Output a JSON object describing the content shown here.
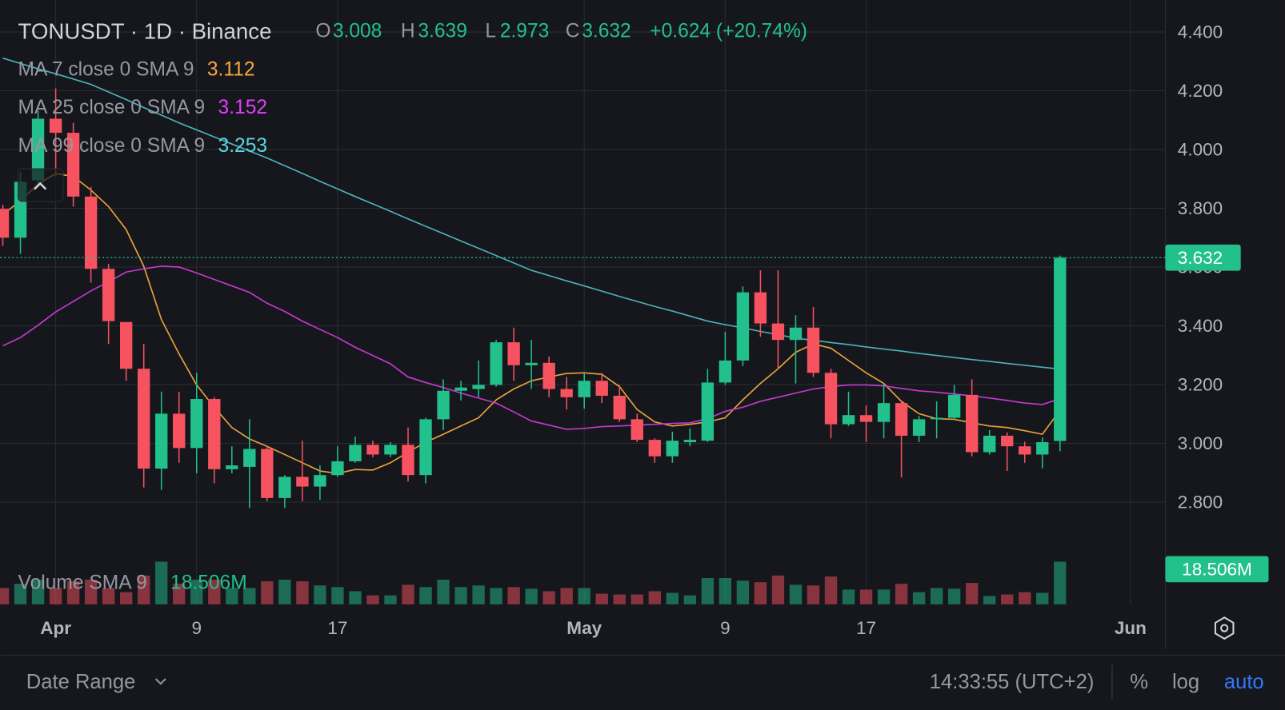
{
  "chart_data": {
    "type": "candlestick",
    "title": "TONUSDT · 1D · Binance",
    "header": {
      "open_label": "O",
      "high_label": "H",
      "low_label": "L",
      "close_label": "C",
      "change": "+0.624 (+20.74%)"
    },
    "up_color": "#22c08b",
    "down_color": "#f7525f",
    "open": [
      3.798,
      3.7,
      3.895,
      4.105,
      4.057,
      3.84,
      3.594,
      3.413,
      3.254,
      2.914,
      3.101,
      2.984,
      3.151,
      2.912,
      2.92,
      2.981,
      2.814,
      2.886,
      2.853,
      2.892,
      2.939,
      2.995,
      2.962,
      2.995,
      2.892,
      3.082,
      3.179,
      3.185,
      3.199,
      3.344,
      3.266,
      3.274,
      3.185,
      3.157,
      3.213,
      3.162,
      3.082,
      3.012,
      2.956,
      3.004,
      3.009,
      3.207,
      3.282,
      3.514,
      3.408,
      3.352,
      3.394,
      3.24,
      3.065,
      3.096,
      3.073,
      3.137,
      3.026,
      3.082,
      3.087,
      3.165,
      2.97,
      3.026,
      2.99,
      2.962,
      3.008
    ],
    "high": [
      3.812,
      3.923,
      4.132,
      4.208,
      4.091,
      3.873,
      3.611,
      3.413,
      3.338,
      3.176,
      3.176,
      3.24,
      3.157,
      2.99,
      3.082,
      2.99,
      2.892,
      3.009,
      2.925,
      2.99,
      3.023,
      3.009,
      3.004,
      3.054,
      3.087,
      3.218,
      3.213,
      3.282,
      3.352,
      3.394,
      3.352,
      3.296,
      3.226,
      3.24,
      3.24,
      3.199,
      3.101,
      3.017,
      3.04,
      3.051,
      3.254,
      3.38,
      3.534,
      3.589,
      3.589,
      3.436,
      3.464,
      3.254,
      3.176,
      3.129,
      3.204,
      3.14,
      3.093,
      3.143,
      3.199,
      3.218,
      3.045,
      3.037,
      3.006,
      3.02,
      3.639
    ],
    "low": [
      3.672,
      3.645,
      3.882,
      3.909,
      3.806,
      3.547,
      3.338,
      3.213,
      2.85,
      2.842,
      2.934,
      2.898,
      2.864,
      2.898,
      2.78,
      2.803,
      2.78,
      2.803,
      2.808,
      2.886,
      2.934,
      2.953,
      2.953,
      2.87,
      2.864,
      3.045,
      3.146,
      3.157,
      3.193,
      3.213,
      3.185,
      3.157,
      3.115,
      3.118,
      3.137,
      3.073,
      3.004,
      2.934,
      2.934,
      2.99,
      3.004,
      3.199,
      3.263,
      3.363,
      3.252,
      3.204,
      3.226,
      3.017,
      3.059,
      3.004,
      3.017,
      2.884,
      3.004,
      3.017,
      3.079,
      2.956,
      2.962,
      2.906,
      2.934,
      2.915,
      2.973
    ],
    "close": [
      3.7,
      3.89,
      4.105,
      4.057,
      3.84,
      3.594,
      3.416,
      3.254,
      2.914,
      3.101,
      2.984,
      3.151,
      2.912,
      2.925,
      2.981,
      2.814,
      2.886,
      2.853,
      2.892,
      2.939,
      2.995,
      2.962,
      2.995,
      2.892,
      3.082,
      3.179,
      3.19,
      3.199,
      3.344,
      3.266,
      3.274,
      3.185,
      3.157,
      3.213,
      3.162,
      3.082,
      3.012,
      2.956,
      3.009,
      3.012,
      3.207,
      3.282,
      3.514,
      3.408,
      3.352,
      3.394,
      3.24,
      3.065,
      3.096,
      3.073,
      3.137,
      3.026,
      3.082,
      3.087,
      3.165,
      2.97,
      3.026,
      2.99,
      2.962,
      3.004,
      3.632
    ],
    "series": [
      {
        "name": "MA 7 close 0 SMA 9",
        "color": "#e8a33d",
        "label_color": "#f7a644",
        "values": [
          3.778,
          3.826,
          3.882,
          3.918,
          3.909,
          3.862,
          3.806,
          3.728,
          3.603,
          3.422,
          3.305,
          3.199,
          3.123,
          3.054,
          3.015,
          2.99,
          2.962,
          2.934,
          2.906,
          2.898,
          2.911,
          2.909,
          2.934,
          2.97,
          3.004,
          3.031,
          3.059,
          3.087,
          3.148,
          3.185,
          3.213,
          3.226,
          3.238,
          3.24,
          3.235,
          3.193,
          3.115,
          3.073,
          3.059,
          3.065,
          3.073,
          3.087,
          3.148,
          3.204,
          3.254,
          3.31,
          3.338,
          3.324,
          3.282,
          3.24,
          3.204,
          3.143,
          3.101,
          3.084,
          3.082,
          3.07,
          3.059,
          3.054,
          3.043,
          3.031,
          3.112
        ]
      },
      {
        "name": "MA 25 close 0 SMA 9",
        "color": "#c53ad0",
        "label_color": "#e040fb",
        "values": [
          3.332,
          3.36,
          3.402,
          3.447,
          3.483,
          3.519,
          3.55,
          3.583,
          3.594,
          3.603,
          3.6,
          3.58,
          3.558,
          3.536,
          3.514,
          3.477,
          3.449,
          3.416,
          3.388,
          3.36,
          3.327,
          3.299,
          3.271,
          3.226,
          3.207,
          3.19,
          3.171,
          3.154,
          3.137,
          3.107,
          3.076,
          3.062,
          3.048,
          3.051,
          3.057,
          3.059,
          3.062,
          3.065,
          3.068,
          3.07,
          3.084,
          3.109,
          3.123,
          3.143,
          3.157,
          3.171,
          3.185,
          3.193,
          3.199,
          3.199,
          3.196,
          3.187,
          3.179,
          3.174,
          3.168,
          3.162,
          3.154,
          3.146,
          3.137,
          3.132,
          3.152
        ]
      },
      {
        "name": "MA 99 close 0 SMA 9",
        "color": "#4bb3bd",
        "label_color": "#5ad6e0",
        "values": [
          4.311,
          4.293,
          4.275,
          4.258,
          4.24,
          4.222,
          4.196,
          4.17,
          4.143,
          4.117,
          4.091,
          4.067,
          4.043,
          4.019,
          3.995,
          3.971,
          3.945,
          3.919,
          3.892,
          3.866,
          3.84,
          3.815,
          3.79,
          3.764,
          3.739,
          3.714,
          3.689,
          3.664,
          3.639,
          3.614,
          3.589,
          3.571,
          3.553,
          3.536,
          3.518,
          3.5,
          3.483,
          3.466,
          3.45,
          3.433,
          3.416,
          3.404,
          3.393,
          3.381,
          3.37,
          3.358,
          3.351,
          3.343,
          3.336,
          3.328,
          3.321,
          3.314,
          3.306,
          3.299,
          3.292,
          3.285,
          3.279,
          3.272,
          3.266,
          3.259,
          3.253
        ]
      }
    ],
    "volume": {
      "name": "Volume SMA 9",
      "last_label": "18.506M",
      "ylim": [
        0,
        20.6
      ],
      "values": [
        7.1,
        8.9,
        10.7,
        7.1,
        10.0,
        10.7,
        7.1,
        5.3,
        12.5,
        18.5,
        8.9,
        10.7,
        10.7,
        7.1,
        7.1,
        10.0,
        10.7,
        10.0,
        8.2,
        7.5,
        5.7,
        3.9,
        3.9,
        8.5,
        7.5,
        10.7,
        7.5,
        8.2,
        7.1,
        7.5,
        6.8,
        5.7,
        7.1,
        7.1,
        4.6,
        4.3,
        4.3,
        5.7,
        5.0,
        3.9,
        11.4,
        11.4,
        10.3,
        9.6,
        12.5,
        8.5,
        8.2,
        12.1,
        6.4,
        6.4,
        6.4,
        8.9,
        5.3,
        7.1,
        6.8,
        9.3,
        3.6,
        4.3,
        5.3,
        5.0,
        18.506
      ]
    },
    "xlim": [
      -0.16,
      65.98
    ],
    "xticks": [
      {
        "value": 3,
        "label": "Apr"
      },
      {
        "value": 11,
        "label": "9"
      },
      {
        "value": 19,
        "label": "17"
      },
      {
        "value": 33,
        "label": "May"
      },
      {
        "value": 41,
        "label": "9"
      },
      {
        "value": 49,
        "label": "17"
      },
      {
        "value": 64,
        "label": "Jun"
      }
    ],
    "ylim": [
      2.452,
      4.509
    ],
    "yticks": [
      {
        "value": 2.8,
        "label": "2.800"
      },
      {
        "value": 3.0,
        "label": "3.000"
      },
      {
        "value": 3.2,
        "label": "3.200"
      },
      {
        "value": 3.4,
        "label": "3.400"
      },
      {
        "value": 3.6,
        "label": "3.600"
      },
      {
        "value": 3.8,
        "label": "3.800"
      },
      {
        "value": 4.0,
        "label": "4.000"
      },
      {
        "value": 4.2,
        "label": "4.200"
      },
      {
        "value": 4.4,
        "label": "4.400"
      }
    ],
    "grid": true
  },
  "toolbar": {
    "date_range": "Date Range",
    "clock": "14:33:55 (UTC+2)",
    "percent": "%",
    "log": "log",
    "auto": "auto"
  }
}
